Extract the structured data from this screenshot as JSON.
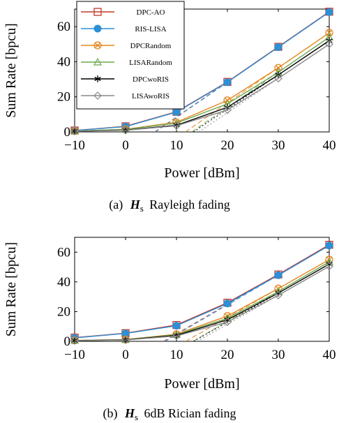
{
  "legend": [
    {
      "label": "DPC-AO",
      "color": "#c0392b",
      "marker": "square"
    },
    {
      "label": "RIS-LISA",
      "color": "#2d8fd6",
      "marker": "filled-circle"
    },
    {
      "label": "DPCRandom",
      "color": "#e6861f",
      "marker": "circle-x"
    },
    {
      "label": "LISARandom",
      "color": "#6aa84f",
      "marker": "triangle"
    },
    {
      "label": "DPCwoRIS",
      "color": "#000000",
      "marker": "star"
    },
    {
      "label": "LISAwoRIS",
      "color": "#888888",
      "marker": "diamond"
    }
  ],
  "captions": {
    "a_prefix": "(a)",
    "a_math": "H",
    "a_sub": "s",
    "a_text": "Rayleigh fading",
    "b_prefix": "(b)",
    "b_math": "H",
    "b_sub": "s",
    "b_text": "6dB Rician fading"
  },
  "chart_data": [
    {
      "type": "line",
      "xlabel": "Power [dBm]",
      "ylabel": "Sum Rate [bpcu]",
      "x": [
        -10,
        0,
        10,
        20,
        30,
        40
      ],
      "xticks": [
        "−10",
        "0",
        "10",
        "20",
        "30",
        "40"
      ],
      "yticks": [
        "0",
        "20",
        "40",
        "60"
      ],
      "xlim": [
        -10,
        40
      ],
      "ylim": [
        0,
        70
      ],
      "grid": false,
      "legend_position": "top-center",
      "series": [
        {
          "name": "DPC-AO",
          "values": [
            0.8,
            3.2,
            11.5,
            28.5,
            48.5,
            68.5
          ]
        },
        {
          "name": "RIS-LISA",
          "values": [
            0.8,
            3.0,
            11.3,
            28.3,
            48.3,
            68.3
          ]
        },
        {
          "name": "DPCRandom",
          "values": [
            0.5,
            1.5,
            5.5,
            18.0,
            36.5,
            56.5
          ]
        },
        {
          "name": "LISARandom",
          "values": [
            0.5,
            1.4,
            5.0,
            16.0,
            34.0,
            54.0
          ]
        },
        {
          "name": "DPCwoRIS",
          "values": [
            0.4,
            1.0,
            3.8,
            14.0,
            32.5,
            52.0
          ]
        },
        {
          "name": "LISAwoRIS",
          "values": [
            0.4,
            0.9,
            3.5,
            12.5,
            30.5,
            50.0
          ]
        }
      ]
    },
    {
      "type": "line",
      "xlabel": "Power [dBm]",
      "ylabel": "Sum Rate [bpcu]",
      "x": [
        -10,
        0,
        10,
        20,
        30,
        40
      ],
      "xticks": [
        "−10",
        "0",
        "10",
        "20",
        "30",
        "40"
      ],
      "yticks": [
        "0",
        "20",
        "40",
        "60"
      ],
      "xlim": [
        -10,
        40
      ],
      "ylim": [
        0,
        70
      ],
      "grid": false,
      "series": [
        {
          "name": "DPC-AO",
          "values": [
            2.5,
            5.5,
            11.0,
            26.0,
            45.0,
            65.0
          ]
        },
        {
          "name": "RIS-LISA",
          "values": [
            2.3,
            5.3,
            10.5,
            25.5,
            44.5,
            64.5
          ]
        },
        {
          "name": "DPCRandom",
          "values": [
            0.6,
            1.2,
            4.8,
            17.0,
            35.5,
            55.0
          ]
        },
        {
          "name": "LISARandom",
          "values": [
            0.6,
            1.1,
            4.5,
            15.5,
            33.5,
            53.5
          ]
        },
        {
          "name": "DPCwoRIS",
          "values": [
            0.5,
            1.0,
            4.0,
            14.5,
            32.5,
            52.0
          ]
        },
        {
          "name": "LISAwoRIS",
          "values": [
            0.5,
            0.9,
            3.6,
            13.0,
            31.0,
            50.5
          ]
        }
      ]
    }
  ]
}
